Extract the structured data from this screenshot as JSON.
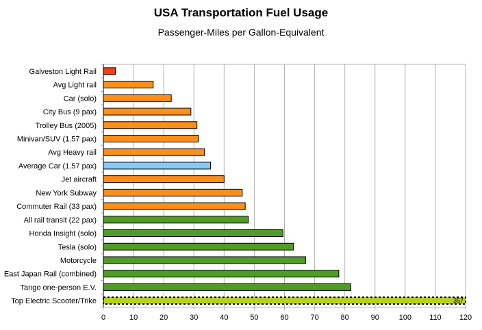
{
  "chart_data": {
    "type": "bar",
    "orientation": "horizontal",
    "title": "USA Transportation Fuel Usage",
    "subtitle": "Passenger-Miles per Gallon-Equivalent",
    "xlabel": "",
    "ylabel": "",
    "xlim": [
      0,
      120
    ],
    "x_ticks": [
      "0",
      "10",
      "20",
      "30",
      "40",
      "50",
      "60",
      "70",
      "80",
      "90",
      "100",
      "110",
      "120"
    ],
    "grid": "vertical gridlines",
    "legend": "none",
    "categories": [
      "Galveston Light Rail",
      "Avg Light rail",
      "Car (solo)",
      "City Bus  (9 pax)",
      "Trolley Bus (2005)",
      "Minivan/SUV (1.57 pax)",
      "Avg Heavy rail",
      "Average Car (1.57 pax)",
      "Jet aircraft",
      "New York Subway",
      "Commuter Rail (33 pax)",
      "All rail transit (22 pax)",
      "Honda Insight (solo)",
      "Tesla (solo)",
      "Motorcycle",
      "East Japan Rail (combined)",
      "Tango one-person E.V.",
      "Top Electric Scooter/Trike"
    ],
    "values": [
      4,
      16.5,
      22.5,
      29,
      31,
      31.5,
      33.5,
      35.5,
      40,
      46,
      47,
      48,
      59.5,
      63,
      67,
      78,
      82,
      357
    ],
    "colors": [
      "#f0401a",
      "#fb8f19",
      "#fb8f19",
      "#fb8f19",
      "#fb8f19",
      "#fb8f19",
      "#fb8f19",
      "#88c9f6",
      "#fb8f19",
      "#fb8f19",
      "#fb8f19",
      "#519b27",
      "#519b27",
      "#519b27",
      "#519b27",
      "#519b27",
      "#519b27",
      "#b8d21a"
    ],
    "data_labels": [
      "",
      "",
      "",
      "",
      "",
      "",
      "",
      "",
      "",
      "",
      "",
      "",
      "",
      "",
      "",
      "",
      "",
      "357"
    ],
    "truncated_last_bar": true
  }
}
